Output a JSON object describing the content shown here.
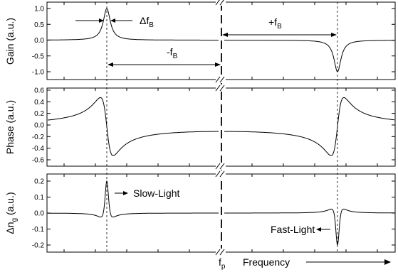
{
  "panels": [
    {
      "id": "gain",
      "ylabel": "Gain (a.u.)",
      "yticks": [
        "1.0",
        "0.5",
        "0.0",
        "-0.5",
        "-1.0"
      ],
      "ytick_values": [
        1.0,
        0.5,
        0.0,
        -0.5,
        -1.0
      ],
      "ylim": [
        -1.1,
        1.1
      ]
    },
    {
      "id": "phase",
      "ylabel": "Phase (a.u.)",
      "yticks": [
        "0.6",
        "0.4",
        "0.2",
        "0.0",
        "-0.2",
        "-0.4",
        "-0.6"
      ],
      "ytick_values": [
        0.6,
        0.4,
        0.2,
        0.0,
        -0.2,
        -0.4,
        -0.6
      ],
      "ylim": [
        -0.6,
        0.6
      ]
    },
    {
      "id": "dng",
      "ylabel_main": "Δn",
      "ylabel_sub": "g",
      "ylabel_rest": " (a.u.)",
      "yticks": [
        "0.2",
        "0.1",
        "0.0",
        "-0.1",
        "-0.2"
      ],
      "ytick_values": [
        0.2,
        0.1,
        0.0,
        -0.1,
        -0.2
      ],
      "ylim": [
        -0.22,
        0.22
      ]
    }
  ],
  "annotations": {
    "delta_fb_main": "Δf",
    "delta_fb_sub": "B",
    "minus_fb_main": "-f",
    "minus_fb_sub": "B",
    "plus_fb_main": "+f",
    "plus_fb_sub": "B",
    "slow_light": "Slow-Light",
    "fast_light": "Fast-Light"
  },
  "xaxis": {
    "pump_main": "f",
    "pump_sub": "p",
    "label": "Frequency"
  },
  "colors": {
    "line": "#000000",
    "background": "#ffffff"
  }
}
